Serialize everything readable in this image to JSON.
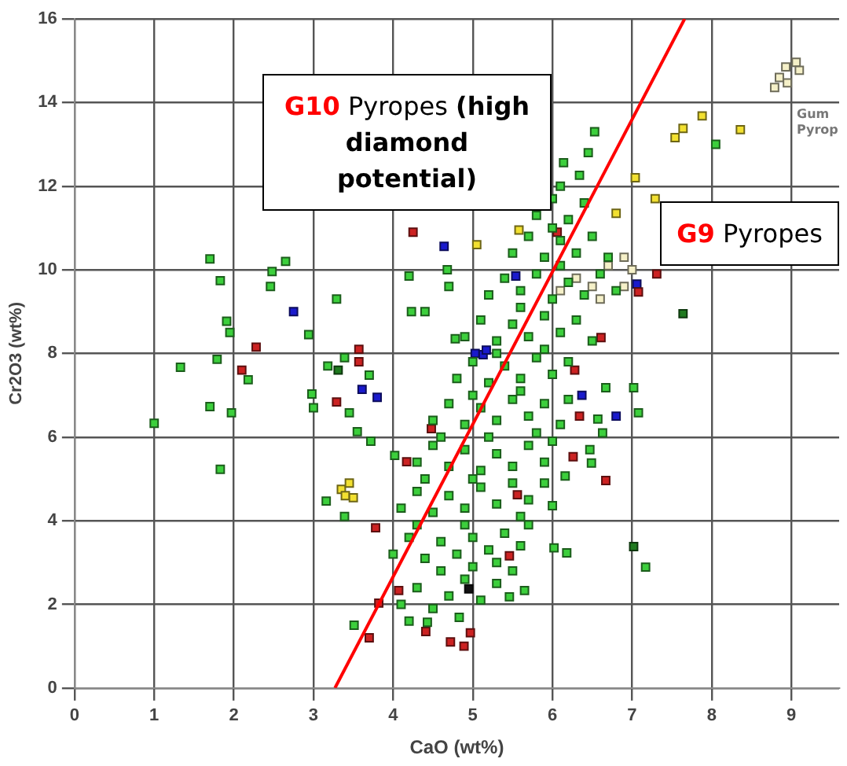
{
  "chart_data": {
    "type": "scatter",
    "xlabel": "CaO (wt%)",
    "ylabel": "Cr2O3 (wt%)",
    "xlim": [
      0,
      9.6
    ],
    "xticks": [
      0,
      1,
      2,
      3,
      4,
      5,
      6,
      7,
      8,
      9
    ],
    "ylim": [
      0,
      16
    ],
    "yticks": [
      0,
      2,
      4,
      6,
      8,
      10,
      12,
      14,
      16
    ],
    "grid": true,
    "legend": false,
    "marker": "square",
    "annotations": [
      "G10 Pyropes (high diamond potential)",
      "G9 Pyropes",
      "Gum Pyrop"
    ],
    "series": [
      {
        "type": "scatter",
        "color": "#3ccf3c",
        "x": [
          4.1,
          4.3,
          4.5,
          4.7,
          4.9,
          5.1,
          5.3,
          4.6,
          5.0,
          5.5,
          4.0,
          4.2,
          4.4,
          4.6,
          4.8,
          5.0,
          5.2,
          5.4,
          5.6,
          4.3,
          4.9,
          5.3,
          5.7,
          4.1,
          4.3,
          4.5,
          4.7,
          4.9,
          5.1,
          5.3,
          5.5,
          5.7,
          5.9,
          4.4,
          5.0,
          5.6,
          4.3,
          4.5,
          4.7,
          4.9,
          5.1,
          5.3,
          5.5,
          5.7,
          5.9,
          6.0,
          4.6,
          5.2,
          5.8,
          4.5,
          4.7,
          4.9,
          5.1,
          5.3,
          5.5,
          5.7,
          5.9,
          6.1,
          6.2,
          5.0,
          5.6,
          4.8,
          5.0,
          5.2,
          5.4,
          5.6,
          5.8,
          6.0,
          6.2,
          5.3,
          5.9,
          4.9,
          5.1,
          5.3,
          5.5,
          5.7,
          5.9,
          6.1,
          6.3,
          6.5,
          5.6,
          5.2,
          5.4,
          5.6,
          5.8,
          6.0,
          6.2,
          6.4,
          6.6,
          6.8,
          6.1,
          5.5,
          5.7,
          5.9,
          6.1,
          6.3,
          6.5,
          6.7,
          6.0,
          5.8,
          6.0,
          6.2,
          6.4,
          6.1,
          1.7,
          1.83,
          2.48,
          2.65,
          2.46,
          3.29,
          1.91,
          1.95,
          2.94,
          4.2,
          4.68,
          4.7,
          4.23,
          4.4,
          4.78,
          1.33,
          1.79,
          2.18,
          1.7,
          1.97,
          1.0,
          1.83,
          3.16,
          3.39,
          3.51,
          2.98,
          3.0,
          3.18,
          3.39,
          3.45,
          3.55,
          3.72,
          3.7,
          4.02,
          4.2,
          4.43,
          7.02,
          7.08,
          6.67,
          6.57,
          6.63,
          6.47,
          6.49,
          6.16,
          6.0,
          6.02,
          6.18,
          7.17,
          5.65,
          5.46,
          4.83,
          8.05,
          6.53,
          6.45,
          6.14,
          6.34
        ],
        "values": [
          2.0,
          2.4,
          1.9,
          2.2,
          2.6,
          2.1,
          2.5,
          2.8,
          2.9,
          2.8,
          3.2,
          3.6,
          3.1,
          3.5,
          3.2,
          3.6,
          3.3,
          3.7,
          3.4,
          3.9,
          3.9,
          3.0,
          3.9,
          4.3,
          4.7,
          4.2,
          4.6,
          4.3,
          4.8,
          4.4,
          4.9,
          4.5,
          4.9,
          5.0,
          5.0,
          4.1,
          5.4,
          5.8,
          5.3,
          5.7,
          5.2,
          5.6,
          5.3,
          5.8,
          5.4,
          5.9,
          6.0,
          6.0,
          6.1,
          6.4,
          6.8,
          6.3,
          6.7,
          6.4,
          6.9,
          6.5,
          6.8,
          6.3,
          6.9,
          7.0,
          7.1,
          7.4,
          7.8,
          7.3,
          7.7,
          7.4,
          7.9,
          7.5,
          7.8,
          8.0,
          8.1,
          8.4,
          8.8,
          8.3,
          8.7,
          8.4,
          8.9,
          8.5,
          8.8,
          8.3,
          9.1,
          9.4,
          9.8,
          9.5,
          9.9,
          9.3,
          9.7,
          9.4,
          9.9,
          9.5,
          10.1,
          10.4,
          10.8,
          10.3,
          10.7,
          10.4,
          10.8,
          10.3,
          11.0,
          11.3,
          11.7,
          11.2,
          11.6,
          12.0,
          10.26,
          9.74,
          9.96,
          10.2,
          9.6,
          9.3,
          8.77,
          8.5,
          8.45,
          9.85,
          10.0,
          9.6,
          9.0,
          9.0,
          8.35,
          7.67,
          7.86,
          7.37,
          6.73,
          6.58,
          6.33,
          5.23,
          4.47,
          4.1,
          1.5,
          7.03,
          6.7,
          7.7,
          7.9,
          6.58,
          6.13,
          5.9,
          7.48,
          5.56,
          1.6,
          1.57,
          7.18,
          6.58,
          7.18,
          6.43,
          6.1,
          5.7,
          5.38,
          5.07,
          4.36,
          3.35,
          3.23,
          2.89,
          2.33,
          2.18,
          1.69,
          13.0,
          13.3,
          12.8,
          12.56,
          12.26
        ]
      },
      {
        "type": "scatter",
        "color": "#cc2222",
        "x": [
          4.25,
          2.28,
          3.57,
          2.1,
          3.29,
          3.57,
          4.48,
          4.17,
          3.78,
          4.07,
          3.82,
          3.7,
          4.41,
          4.72,
          4.97,
          4.89,
          6.67,
          6.28,
          6.34,
          6.26,
          5.46,
          5.56,
          6.06,
          7.08,
          6.61,
          7.31
        ],
        "values": [
          10.9,
          8.15,
          8.1,
          7.6,
          6.84,
          7.8,
          6.2,
          5.41,
          3.83,
          2.33,
          2.03,
          1.2,
          1.35,
          1.1,
          1.32,
          1.0,
          4.96,
          7.6,
          6.5,
          5.53,
          3.16,
          4.62,
          10.9,
          9.47,
          8.38,
          9.9
        ]
      },
      {
        "type": "scatter",
        "color": "#1a1acc",
        "x": [
          2.75,
          4.64,
          3.8,
          3.61,
          6.8,
          6.37,
          5.03,
          5.13,
          5.54,
          7.06,
          5.17
        ],
        "values": [
          9.0,
          10.56,
          6.95,
          7.14,
          6.5,
          7.0,
          8.0,
          7.97,
          9.85,
          9.66,
          8.08
        ]
      },
      {
        "type": "scatter",
        "color": "#f2e030",
        "x": [
          7.88,
          7.64,
          7.54,
          8.36,
          7.04,
          5.58,
          5.05,
          6.8,
          7.29,
          3.35,
          3.45,
          3.4,
          3.5
        ],
        "values": [
          13.68,
          13.38,
          13.16,
          13.35,
          12.2,
          10.95,
          10.6,
          11.35,
          11.7,
          4.75,
          4.9,
          4.6,
          4.55
        ]
      },
      {
        "type": "scatter",
        "color": "#f5f0c8",
        "x": [
          8.93,
          8.85,
          9.06,
          8.79,
          8.95,
          9.1,
          6.3,
          6.5,
          6.7,
          6.9,
          6.6,
          6.1,
          6.9,
          7.0
        ],
        "values": [
          14.85,
          14.6,
          14.96,
          14.36,
          14.47,
          14.77,
          9.8,
          9.6,
          10.1,
          10.3,
          9.3,
          9.5,
          9.6,
          10.0
        ]
      },
      {
        "type": "scatter",
        "color": "#1f7a1f",
        "x": [
          7.02,
          7.64,
          3.31
        ],
        "values": [
          3.38,
          8.95,
          7.6
        ]
      },
      {
        "type": "scatter",
        "color": "#111111",
        "x": [
          4.95
        ],
        "values": [
          2.37
        ]
      },
      {
        "type": "line",
        "color": "#ff0000",
        "x": [
          3.27,
          7.66
        ],
        "values": [
          0,
          16
        ],
        "marker": "none",
        "line_style": "solid"
      }
    ]
  }
}
